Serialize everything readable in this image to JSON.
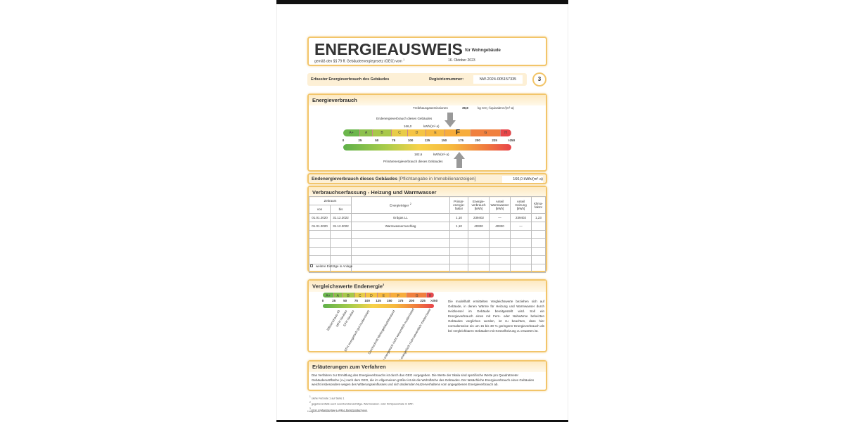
{
  "header": {
    "title": "ENERGIEAUSWEIS",
    "subtitle": "für Wohngebäude",
    "law": "gemäß den §§ 79 ff. Gebäudeenergiegesetz (GEG) vom",
    "law_footnote": "1",
    "date": "16. Oktober 2023"
  },
  "registration": {
    "label": "Erfasster Energieverbrauch des Gebäudes",
    "reg_label": "Registriernummer:",
    "reg_number": "NW-2024-005157335",
    "page": "3"
  },
  "energy": {
    "title": "Energieverbrauch",
    "ghg_label": "Treibhausgasemissionen",
    "ghg_value": "39,8",
    "ghg_unit": "kg CO₂-Äquivalent /(m²·a)",
    "end_label": "Endenergieverbrauch dieses Gebäudes",
    "end_value": "166,0",
    "unit": "kWh/(m²·a)",
    "primary_value": "182,6",
    "primary_label": "Primärenergieverbrauch dieses Gebäudes",
    "end_value_num": 166.0,
    "primary_value_num": 182.6,
    "current_class": "F",
    "classes": [
      "A+",
      "A",
      "B",
      "C",
      "D",
      "E",
      "F",
      "G",
      "H"
    ],
    "ticks": [
      "0",
      "25",
      "50",
      "75",
      "100",
      "125",
      "150",
      "175",
      "200",
      "225",
      ">250"
    ],
    "class_colors": [
      "#6cb64c",
      "#8cc04c",
      "#a8c84a",
      "#e8cc48",
      "#f5c444",
      "#f6b83e",
      "#f7ad3c",
      "#f0803e",
      "#e8474a"
    ]
  },
  "summary": {
    "label": "Endenergieverbrauch dieses Gebäudes",
    "note": "[Pflichtangabe in Immobilienanzeigen]",
    "value": "166,0 kWh/(m²·a)"
  },
  "consumption": {
    "title": "Verbrauchserfassung - Heizung und Warmwasser",
    "headers": {
      "period": "Zeitraum",
      "from": "von",
      "to": "bis",
      "carrier": "Energieträger",
      "carrier_fn": "2",
      "pef": "Primär-energie-faktor",
      "consumption": "Energie-verbrauch [kWh]",
      "ww": "Anteil Warmwasser [kWh]",
      "heating": "Anteil Heizung [kWh]",
      "climate": "Klima-faktor"
    },
    "rows": [
      {
        "from": "01.01.2020",
        "to": "31.12.2022",
        "carrier": "Erdgas LL",
        "pef": "1,10",
        "consumption": "239402",
        "ww": "—",
        "heating": "239402",
        "climate": "1,23"
      },
      {
        "from": "01.01.2020",
        "to": "31.12.2022",
        "carrier": "Warmwasserzuschlag",
        "pef": "1,10",
        "consumption": "40320",
        "ww": "40320",
        "heating": "—",
        "climate": ""
      }
    ],
    "more_entries": "weitere Einträge in Anlage"
  },
  "comparison": {
    "title": "Vergleichswerte Endenergie",
    "title_fn": "3",
    "labels": [
      "Effizienzhaus 40",
      "MFH Neubau",
      "EFH Neubau",
      "EFH energetisch gut modernisiert",
      "Durchschnitt Wohngebäudebestand",
      "MFH energetisch nicht wesentlich modernisiert",
      "EFH energetisch nicht wesentlich modernisiert"
    ],
    "text": "Die modellhaft ermittelten Vergleichswerte beziehen sich auf Gebäude, in denen Wärme für Heizung und Warmwasser durch Heizkessel im Gebäude bereitgestellt wird. Soll ein Energieverbrauch eines mit Fern- oder Nahwärme beheizten Gebäudes verglichen werden, ist zu beachten, dass hier normalerweise ein um 15 bis 30 % geringerer Energieverbrauch als bei vergleichbaren Gebäuden mit Kesselheizung zu erwarten ist."
  },
  "explanation": {
    "title": "Erläuterungen zum Verfahren",
    "text": "Das Verfahren zur Ermittlung des Energieverbrauchs ist durch das GEG vorgegeben. Die Werte der Skala sind spezifische Werte pro Quadratmeter Gebäudenutzfläche (Aₙ) nach dem GEG, die im Allgemeinen größer ist als die Wohnfläche des Gebäudes. Der tatsächliche Energieverbrauch eines Gebäudes weicht insbesondere wegen des Witterungseinflusses und sich ändernden Nutzerverhaltens vom angegebenen Energieverbrauch ab."
  },
  "footnotes": [
    "siehe Fußnote 1 auf Seite 1",
    "gegebenenfalls auch Leerstandszuschläge, Warmwasser- oder Kühlpauschale in kWh",
    "EFH: Einfamilienhaus, MFH: Mehrfamilienhaus"
  ],
  "footer": "Hottgenroth Software AG, HS Verbrauchsausweis 4.4.1"
}
